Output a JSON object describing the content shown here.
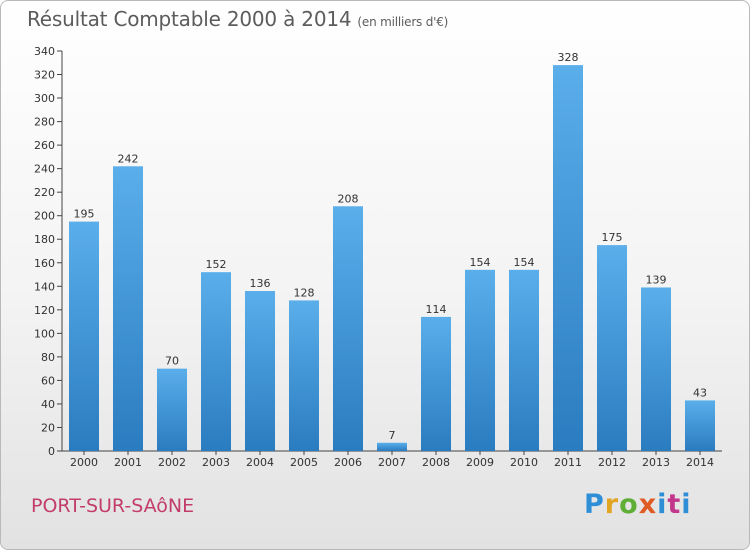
{
  "header": {
    "title": "Résultat Comptable 2000 à 2014",
    "subtitle": "(en milliers d'€)"
  },
  "footer": {
    "commune": "PORT-SUR-SAôNE",
    "logo": [
      "P",
      "r",
      "o",
      "x",
      "i",
      "t",
      "i"
    ]
  },
  "colors": {
    "bar_light": "#5aaeea",
    "bar_dark": "#2a7cc0",
    "title": "#5c5c5c",
    "commune": "#c33d6a"
  },
  "chart_data": {
    "type": "bar",
    "title": "Résultat Comptable 2000 à 2014",
    "subtitle": "(en milliers d'€)",
    "categories": [
      "2000",
      "2001",
      "2002",
      "2003",
      "2004",
      "2005",
      "2006",
      "2007",
      "2008",
      "2009",
      "2010",
      "2011",
      "2012",
      "2013",
      "2014"
    ],
    "values": [
      195,
      242,
      70,
      152,
      136,
      128,
      208,
      7,
      114,
      154,
      154,
      328,
      175,
      139,
      43
    ],
    "ylim": [
      0,
      340
    ],
    "yticks": [
      0,
      20,
      40,
      60,
      80,
      100,
      120,
      140,
      160,
      180,
      200,
      220,
      240,
      260,
      280,
      300,
      320,
      340
    ],
    "grid": false,
    "data_labels": true
  }
}
